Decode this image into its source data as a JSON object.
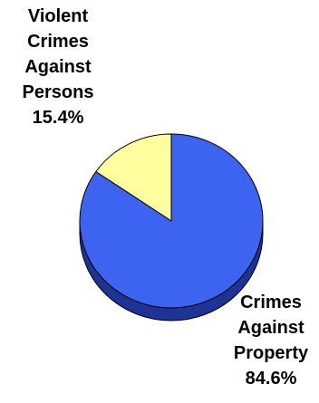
{
  "chart_data": {
    "type": "pie",
    "style": "3d",
    "slices": [
      {
        "key": "violent",
        "label_lines": [
          "Violent",
          "Crimes",
          "Against",
          "Persons"
        ],
        "value_label": "15.4%",
        "value": 15.4,
        "color": "#ffffa0",
        "side_color": "#c8c870"
      },
      {
        "key": "property",
        "label_lines": [
          "Crimes",
          "Against",
          "Property"
        ],
        "value_label": "84.6%",
        "value": 84.6,
        "color": "#3c64f0",
        "side_color": "#1e3494"
      }
    ]
  }
}
